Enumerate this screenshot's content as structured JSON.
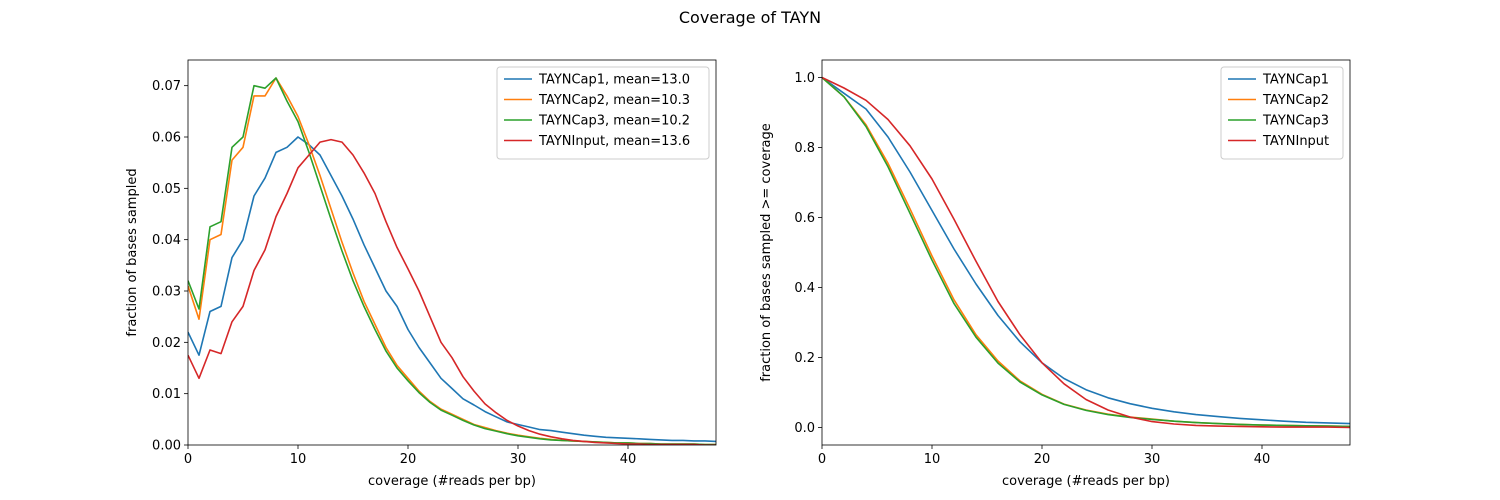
{
  "figure": {
    "title": "Coverage of TAYN"
  },
  "chart_data": [
    {
      "type": "line",
      "xlabel": "coverage (#reads per bp)",
      "ylabel": "fraction of bases sampled",
      "xlim": [
        0,
        48
      ],
      "ylim": [
        0,
        0.075
      ],
      "xticks": [
        0,
        10,
        20,
        30,
        40
      ],
      "yticks": [
        0.0,
        0.01,
        0.02,
        0.03,
        0.04,
        0.05,
        0.06,
        0.07
      ],
      "ytick_labels": [
        "0.00",
        "0.01",
        "0.02",
        "0.03",
        "0.04",
        "0.05",
        "0.06",
        "0.07"
      ],
      "grid": false,
      "legend_position": "top-right",
      "x": [
        0,
        1,
        2,
        3,
        4,
        5,
        6,
        7,
        8,
        9,
        10,
        11,
        12,
        13,
        14,
        15,
        16,
        17,
        18,
        19,
        20,
        21,
        22,
        23,
        24,
        25,
        26,
        27,
        28,
        29,
        30,
        31,
        32,
        33,
        34,
        35,
        36,
        37,
        38,
        39,
        40,
        41,
        42,
        43,
        44,
        45,
        46,
        47,
        48
      ],
      "series": [
        {
          "name": "TAYNCap1, mean=13.0",
          "color": "#1f77b4",
          "values": [
            0.022,
            0.0175,
            0.026,
            0.027,
            0.0365,
            0.04,
            0.0485,
            0.052,
            0.057,
            0.058,
            0.06,
            0.0585,
            0.0565,
            0.0525,
            0.0485,
            0.044,
            0.039,
            0.0345,
            0.03,
            0.027,
            0.0225,
            0.019,
            0.016,
            0.013,
            0.011,
            0.009,
            0.0078,
            0.0065,
            0.0055,
            0.0045,
            0.004,
            0.0035,
            0.003,
            0.0028,
            0.0025,
            0.0022,
            0.0019,
            0.0017,
            0.0015,
            0.0014,
            0.0013,
            0.0012,
            0.0011,
            0.001,
            0.0009,
            0.0009,
            0.0008,
            0.0008,
            0.0007
          ]
        },
        {
          "name": "TAYNCap2, mean=10.3",
          "color": "#ff7f0e",
          "values": [
            0.031,
            0.0245,
            0.04,
            0.041,
            0.0555,
            0.058,
            0.068,
            0.068,
            0.0715,
            0.068,
            0.064,
            0.0585,
            0.0525,
            0.046,
            0.0395,
            0.0335,
            0.028,
            0.0235,
            0.019,
            0.0155,
            0.013,
            0.0105,
            0.0085,
            0.007,
            0.006,
            0.005,
            0.004,
            0.0034,
            0.0028,
            0.0023,
            0.0019,
            0.0016,
            0.0013,
            0.0011,
            0.0009,
            0.0008,
            0.0007,
            0.0006,
            0.0005,
            0.0004,
            0.0004,
            0.0003,
            0.0003,
            0.0002,
            0.0002,
            0.0002,
            0.0002,
            0.0001,
            0.0001
          ]
        },
        {
          "name": "TAYNCap3, mean=10.2",
          "color": "#2ca02c",
          "values": [
            0.032,
            0.0265,
            0.0425,
            0.0435,
            0.058,
            0.06,
            0.07,
            0.0695,
            0.0715,
            0.067,
            0.063,
            0.057,
            0.0505,
            0.044,
            0.0378,
            0.032,
            0.027,
            0.0225,
            0.0183,
            0.015,
            0.0125,
            0.0102,
            0.0083,
            0.0068,
            0.0058,
            0.0048,
            0.0039,
            0.0032,
            0.0027,
            0.0022,
            0.0018,
            0.0015,
            0.0012,
            0.001,
            0.0009,
            0.0008,
            0.0007,
            0.0006,
            0.0005,
            0.0004,
            0.0004,
            0.0003,
            0.0003,
            0.0002,
            0.0002,
            0.0002,
            0.0002,
            0.0001,
            0.0001
          ]
        },
        {
          "name": "TAYNInput, mean=13.6",
          "color": "#d62728",
          "values": [
            0.0175,
            0.013,
            0.0185,
            0.0178,
            0.024,
            0.027,
            0.034,
            0.038,
            0.0445,
            0.049,
            0.054,
            0.0565,
            0.059,
            0.0595,
            0.059,
            0.0565,
            0.053,
            0.049,
            0.0435,
            0.0385,
            0.0343,
            0.03,
            0.025,
            0.02,
            0.017,
            0.0133,
            0.0105,
            0.008,
            0.0063,
            0.0048,
            0.0037,
            0.0028,
            0.0021,
            0.0016,
            0.0012,
            0.0009,
            0.0007,
            0.0005,
            0.0004,
            0.0003,
            0.0002,
            0.0002,
            0.0001,
            0.0001,
            0.0001,
            0.0001,
            0.0001,
            0.0,
            0.0
          ]
        }
      ]
    },
    {
      "type": "line",
      "xlabel": "coverage (#reads per bp)",
      "ylabel": "fraction of bases sampled >= coverage",
      "xlim": [
        0,
        48
      ],
      "ylim": [
        -0.05,
        1.05
      ],
      "xticks": [
        0,
        10,
        20,
        30,
        40
      ],
      "yticks": [
        0.0,
        0.2,
        0.4,
        0.6,
        0.8,
        1.0
      ],
      "ytick_labels": [
        "0.0",
        "0.2",
        "0.4",
        "0.6",
        "0.8",
        "1.0"
      ],
      "grid": false,
      "legend_position": "top-right",
      "x": [
        0,
        2,
        4,
        6,
        8,
        10,
        12,
        14,
        16,
        18,
        20,
        22,
        24,
        26,
        28,
        30,
        32,
        34,
        36,
        38,
        40,
        42,
        44,
        46,
        48
      ],
      "series": [
        {
          "name": "TAYNCap1",
          "color": "#1f77b4",
          "values": [
            1.0,
            0.955,
            0.91,
            0.83,
            0.73,
            0.62,
            0.51,
            0.41,
            0.32,
            0.245,
            0.185,
            0.14,
            0.108,
            0.085,
            0.068,
            0.055,
            0.045,
            0.037,
            0.031,
            0.026,
            0.022,
            0.018,
            0.015,
            0.013,
            0.011
          ]
        },
        {
          "name": "TAYNCap2",
          "color": "#ff7f0e",
          "values": [
            1.0,
            0.945,
            0.865,
            0.755,
            0.625,
            0.49,
            0.365,
            0.265,
            0.19,
            0.133,
            0.095,
            0.067,
            0.05,
            0.038,
            0.03,
            0.024,
            0.018,
            0.014,
            0.011,
            0.009,
            0.007,
            0.006,
            0.005,
            0.004,
            0.003
          ]
        },
        {
          "name": "TAYNCap3",
          "color": "#2ca02c",
          "values": [
            1.0,
            0.945,
            0.86,
            0.745,
            0.612,
            0.478,
            0.354,
            0.258,
            0.184,
            0.13,
            0.093,
            0.066,
            0.049,
            0.037,
            0.029,
            0.023,
            0.018,
            0.014,
            0.011,
            0.009,
            0.007,
            0.006,
            0.005,
            0.004,
            0.003
          ]
        },
        {
          "name": "TAYNInput",
          "color": "#d62728",
          "values": [
            1.0,
            0.97,
            0.935,
            0.88,
            0.805,
            0.71,
            0.595,
            0.475,
            0.36,
            0.265,
            0.185,
            0.125,
            0.08,
            0.05,
            0.03,
            0.017,
            0.01,
            0.006,
            0.004,
            0.003,
            0.002,
            0.001,
            0.001,
            0.001,
            0.0
          ]
        }
      ]
    }
  ]
}
